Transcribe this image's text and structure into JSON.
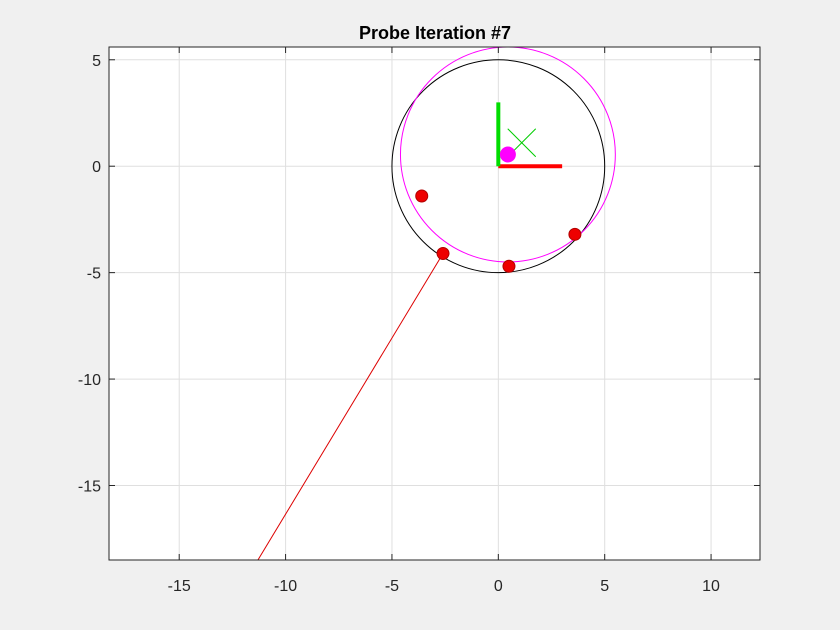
{
  "chart_data": {
    "type": "scatter",
    "title": "Probe Iteration #7",
    "xlabel": "",
    "ylabel": "",
    "xlim": [
      -18.3,
      12.3
    ],
    "ylim": [
      -18.5,
      5.6
    ],
    "grid": true,
    "xticks": [
      -15,
      -10,
      -5,
      0,
      5,
      10
    ],
    "yticks": [
      5,
      0,
      -5,
      -10,
      -15
    ],
    "xtick_labels": [
      "-15",
      "-10",
      "-5",
      "0",
      "5",
      "10"
    ],
    "ytick_labels": [
      "5",
      "0",
      "-5",
      "-10",
      "-15"
    ],
    "circles": [
      {
        "cx": 0,
        "cy": 0,
        "r": 5,
        "color": "#000000"
      },
      {
        "cx": 0.45,
        "cy": 0.55,
        "r": 5.05,
        "color": "#ff00ff"
      }
    ],
    "axes_indicator": [
      {
        "axis": "x",
        "x": [
          0,
          3
        ],
        "y": [
          0,
          0
        ],
        "color": "#ff0000"
      },
      {
        "axis": "y",
        "x": [
          0,
          0
        ],
        "y": [
          0,
          3
        ],
        "color": "#00dd00"
      }
    ],
    "target_marker": {
      "x": 1.1,
      "y": 1.1,
      "symbol": "x",
      "color": "#00cc00"
    },
    "center_point": {
      "x": 0.45,
      "y": 0.55,
      "color": "#ff00ff"
    },
    "probe_points": [
      {
        "x": -3.6,
        "y": -1.4
      },
      {
        "x": -2.6,
        "y": -4.1
      },
      {
        "x": 0.5,
        "y": -4.7
      },
      {
        "x": 3.6,
        "y": -3.2
      }
    ],
    "probe_color": "#ee0000",
    "probe_line": {
      "x": [
        -2.6,
        -11.3
      ],
      "y": [
        -4.1,
        -18.5
      ],
      "color": "#dd0000"
    }
  }
}
